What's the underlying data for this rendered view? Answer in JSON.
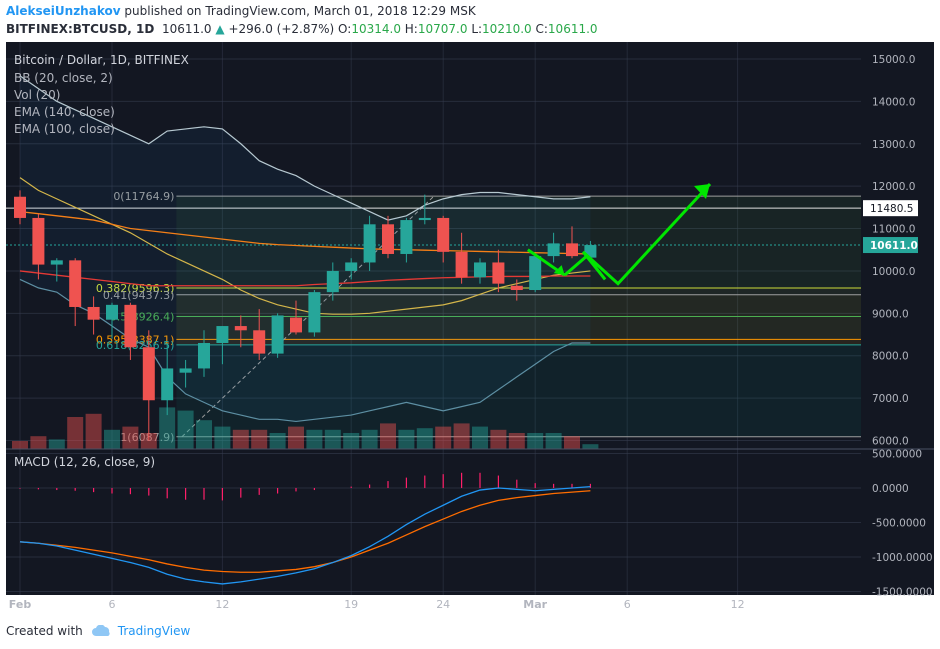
{
  "header": {
    "author": "AlekseiUnzhakov",
    "published_text": "published on TradingView.com, March 01, 2018 12:29 MSK",
    "symbol": "BITFINEX:BTCUSD, 1D",
    "last": "10611.0",
    "change": "+296.0 (+2.87%)",
    "o_label": "O:",
    "o": "10314.0",
    "h_label": "H:",
    "h": "10707.0",
    "l_label": "L:",
    "l": "10210.0",
    "c_label": "C:",
    "c": "10611.0"
  },
  "legend": {
    "title": "Bitcoin / Dollar, 1D, BITFINEX",
    "indicators": [
      "BB (20, close, 2)",
      "Vol (20)",
      "EMA (140, close)",
      "EMA (100, close)"
    ]
  },
  "macd_label": "MACD (12, 26, close, 9)",
  "footer": {
    "created_with": "Created with",
    "brand": "TradingView"
  },
  "colors": {
    "background": "#131722",
    "grid": "#363c4e",
    "up": "#26a69a",
    "down": "#ef5350",
    "bb": "#b7c9d1",
    "ema140": "#f57f17",
    "ema100": "#e53935",
    "macd": "#2196f3",
    "signal": "#ff6d00",
    "arrow": "#00e600",
    "fib_yellow": "#cddc39"
  },
  "chart_data": [
    {
      "type": "candlestick",
      "title": "Bitcoin / Dollar, 1D, BITFINEX",
      "ylim": [
        5800,
        15400
      ],
      "y_ticks": [
        "15000.0",
        "14000.0",
        "13000.0",
        "12000.0",
        "11000.0",
        "10000.0",
        "9000.0",
        "8000.0",
        "7000.0",
        "6000.0"
      ],
      "x_ticks": [
        {
          "label": "Feb",
          "day": 0
        },
        {
          "label": "6",
          "day": 5
        },
        {
          "label": "12",
          "day": 11
        },
        {
          "label": "19",
          "day": 18
        },
        {
          "label": "24",
          "day": 23
        },
        {
          "label": "Mar",
          "day": 28
        },
        {
          "label": "6",
          "day": 33
        },
        {
          "label": "12",
          "day": 39
        }
      ],
      "candles": [
        {
          "o": 11750,
          "h": 11900,
          "l": 11100,
          "c": 11250
        },
        {
          "o": 11250,
          "h": 11350,
          "l": 9800,
          "c": 10150
        },
        {
          "o": 10150,
          "h": 10300,
          "l": 9750,
          "c": 10250
        },
        {
          "o": 10250,
          "h": 10300,
          "l": 8700,
          "c": 9150
        },
        {
          "o": 9150,
          "h": 9400,
          "l": 8500,
          "c": 8850
        },
        {
          "o": 8850,
          "h": 9250,
          "l": 8400,
          "c": 9200
        },
        {
          "o": 9200,
          "h": 9250,
          "l": 7900,
          "c": 8200
        },
        {
          "o": 8200,
          "h": 8600,
          "l": 6000,
          "c": 6950
        },
        {
          "o": 6950,
          "h": 8300,
          "l": 6600,
          "c": 7700
        },
        {
          "o": 7600,
          "h": 7900,
          "l": 7250,
          "c": 7700
        },
        {
          "o": 7700,
          "h": 8600,
          "l": 7500,
          "c": 8300
        },
        {
          "o": 8300,
          "h": 8700,
          "l": 7800,
          "c": 8700
        },
        {
          "o": 8700,
          "h": 8950,
          "l": 8200,
          "c": 8600
        },
        {
          "o": 8600,
          "h": 9100,
          "l": 7900,
          "c": 8050
        },
        {
          "o": 8050,
          "h": 9000,
          "l": 7950,
          "c": 8950
        },
        {
          "o": 8900,
          "h": 9300,
          "l": 8500,
          "c": 8550
        },
        {
          "o": 8550,
          "h": 9550,
          "l": 8450,
          "c": 9500
        },
        {
          "o": 9500,
          "h": 10200,
          "l": 9300,
          "c": 10000
        },
        {
          "o": 10000,
          "h": 10300,
          "l": 9800,
          "c": 10200
        },
        {
          "o": 10200,
          "h": 11300,
          "l": 10000,
          "c": 11100
        },
        {
          "o": 11100,
          "h": 11300,
          "l": 10300,
          "c": 10400
        },
        {
          "o": 10400,
          "h": 11250,
          "l": 10200,
          "c": 11200
        },
        {
          "o": 11200,
          "h": 11800,
          "l": 11100,
          "c": 11250
        },
        {
          "o": 11250,
          "h": 11300,
          "l": 10200,
          "c": 10450
        },
        {
          "o": 10450,
          "h": 10900,
          "l": 9700,
          "c": 9850
        },
        {
          "o": 9850,
          "h": 10300,
          "l": 9700,
          "c": 10200
        },
        {
          "o": 10200,
          "h": 10500,
          "l": 9500,
          "c": 9700
        },
        {
          "o": 9650,
          "h": 9800,
          "l": 9300,
          "c": 9550
        },
        {
          "o": 9550,
          "h": 10400,
          "l": 9500,
          "c": 10350
        },
        {
          "o": 10350,
          "h": 10900,
          "l": 10200,
          "c": 10650
        },
        {
          "o": 10650,
          "h": 11050,
          "l": 10300,
          "c": 10350
        },
        {
          "o": 10314,
          "h": 10707,
          "l": 10210,
          "c": 10611
        }
      ],
      "bb_upper": [
        14600,
        14300,
        14000,
        13800,
        13600,
        13400,
        13200,
        13000,
        13300,
        13350,
        13400,
        13350,
        13000,
        12600,
        12400,
        12250,
        12000,
        11800,
        11600,
        11400,
        11200,
        11300,
        11550,
        11700,
        11800,
        11850,
        11850,
        11800,
        11750,
        11700,
        11700,
        11750
      ],
      "bb_middle": [
        12200,
        11900,
        11700,
        11500,
        11300,
        11100,
        10900,
        10650,
        10400,
        10200,
        10000,
        9800,
        9550,
        9350,
        9200,
        9100,
        9000,
        8980,
        8980,
        9000,
        9050,
        9100,
        9150,
        9200,
        9300,
        9450,
        9600,
        9700,
        9800,
        9900,
        9950,
        10000
      ],
      "bb_lower": [
        9800,
        9600,
        9500,
        9200,
        9000,
        8700,
        8400,
        8200,
        7500,
        7100,
        6900,
        6700,
        6600,
        6500,
        6500,
        6450,
        6500,
        6550,
        6600,
        6700,
        6800,
        6900,
        6800,
        6700,
        6800,
        6900,
        7200,
        7500,
        7800,
        8100,
        8300,
        8300
      ],
      "ema140": [
        11400,
        11350,
        11300,
        11250,
        11200,
        11100,
        11000,
        10950,
        10900,
        10850,
        10800,
        10750,
        10700,
        10650,
        10620,
        10600,
        10580,
        10560,
        10540,
        10520,
        10510,
        10500,
        10490,
        10480,
        10470,
        10460,
        10450,
        10440,
        10430,
        10420,
        10410,
        10400
      ],
      "ema100": [
        10000,
        9950,
        9900,
        9850,
        9800,
        9750,
        9700,
        9650,
        9650,
        9650,
        9650,
        9650,
        9650,
        9650,
        9650,
        9650,
        9680,
        9700,
        9720,
        9750,
        9780,
        9800,
        9820,
        9840,
        9850,
        9860,
        9870,
        9870,
        9870,
        9880,
        9880,
        9880
      ],
      "price_labels": [
        "11480.5",
        "10611.0"
      ],
      "fib_levels": [
        {
          "label": "0(11764.9)",
          "value": 11764.9
        },
        {
          "label": "0.382(9596.3)",
          "value": 9596.3
        },
        {
          "label": "0.41(9437.3)",
          "value": 9437.3
        },
        {
          "label": "0.5(8926.4)",
          "value": 8926.4
        },
        {
          "label": "0.595(8387.1)",
          "value": 8387.1
        },
        {
          "label": "0.618(8256.5)",
          "value": 8256.5
        },
        {
          "label": "1(6087.9)",
          "value": 6087.9
        }
      ],
      "volume": [
        5,
        8,
        6,
        20,
        22,
        12,
        14,
        10,
        26,
        24,
        18,
        14,
        12,
        12,
        10,
        14,
        12,
        12,
        10,
        12,
        16,
        12,
        13,
        14,
        16,
        14,
        12,
        10,
        10,
        10,
        8,
        3
      ]
    },
    {
      "type": "line",
      "title": "MACD (12, 26, close, 9)",
      "ylim": [
        -1550,
        550
      ],
      "y_ticks": [
        "500.0000",
        "0.0000",
        "-500.0000",
        "-1000.0000",
        "-1500.0000"
      ],
      "macd": [
        -780,
        -800,
        -840,
        -900,
        -960,
        -1020,
        -1080,
        -1150,
        -1250,
        -1320,
        -1360,
        -1390,
        -1360,
        -1320,
        -1280,
        -1230,
        -1170,
        -1080,
        -980,
        -850,
        -700,
        -530,
        -380,
        -250,
        -120,
        -30,
        0,
        -20,
        -40,
        -20,
        0,
        20
      ],
      "signal": [
        -780,
        -800,
        -830,
        -860,
        -900,
        -940,
        -990,
        -1040,
        -1100,
        -1150,
        -1190,
        -1210,
        -1220,
        -1220,
        -1200,
        -1180,
        -1140,
        -1080,
        -1000,
        -900,
        -800,
        -680,
        -560,
        -450,
        -340,
        -250,
        -180,
        -140,
        -110,
        -80,
        -60,
        -40
      ],
      "histogram": [
        -10,
        -20,
        -30,
        -40,
        -60,
        -80,
        -90,
        -110,
        -150,
        -170,
        -170,
        -180,
        -140,
        -100,
        -80,
        -50,
        -30,
        0,
        20,
        50,
        100,
        150,
        180,
        200,
        220,
        220,
        180,
        120,
        70,
        60,
        60,
        60
      ]
    }
  ]
}
